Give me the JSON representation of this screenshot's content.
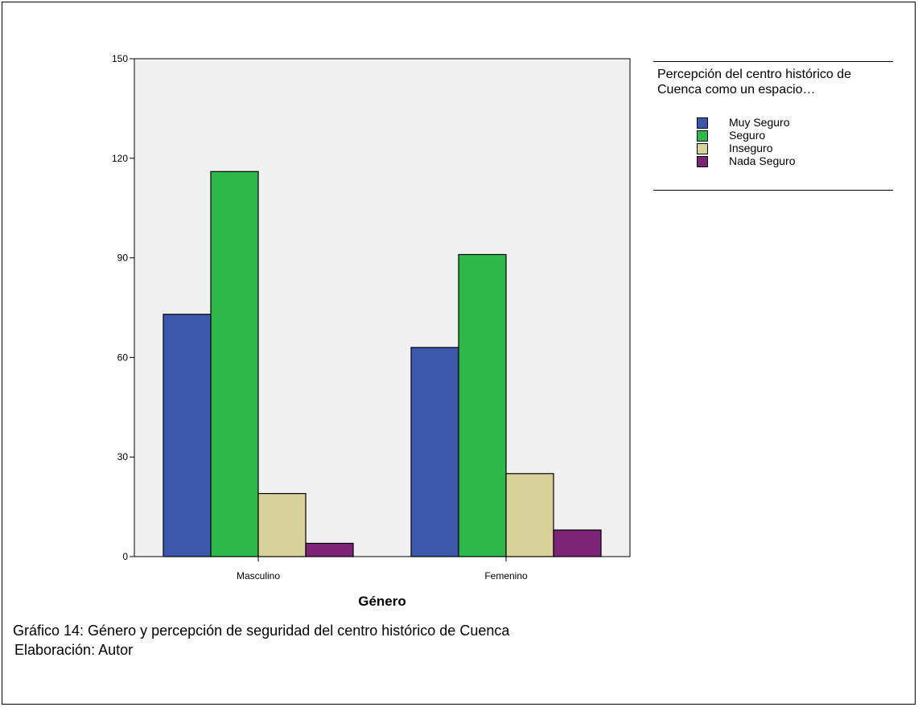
{
  "chart_data": {
    "type": "bar",
    "categories": [
      "Masculino",
      "Femenino"
    ],
    "series": [
      {
        "name": "Muy Seguro",
        "values": [
          73,
          63
        ],
        "color": "#3c58ad"
      },
      {
        "name": "Seguro",
        "values": [
          116,
          91
        ],
        "color": "#2eb84a"
      },
      {
        "name": "Inseguro",
        "values": [
          19,
          25
        ],
        "color": "#d6d299"
      },
      {
        "name": "Nada Seguro",
        "values": [
          4,
          8
        ],
        "color": "#7e2478"
      }
    ],
    "xlabel": "Género",
    "ylabel": "",
    "ylim": [
      0,
      150
    ],
    "yticks": [
      0,
      30,
      60,
      90,
      120,
      150
    ],
    "legend": {
      "title": "Percepción del centro histórico de Cuenca como un espacio…",
      "position": "right"
    },
    "plot_background": "#f0f0f0",
    "grid": false
  },
  "caption": "Gráfico 14: Género y percepción de seguridad del centro histórico de Cuenca",
  "credit": "Elaboración: Autor"
}
